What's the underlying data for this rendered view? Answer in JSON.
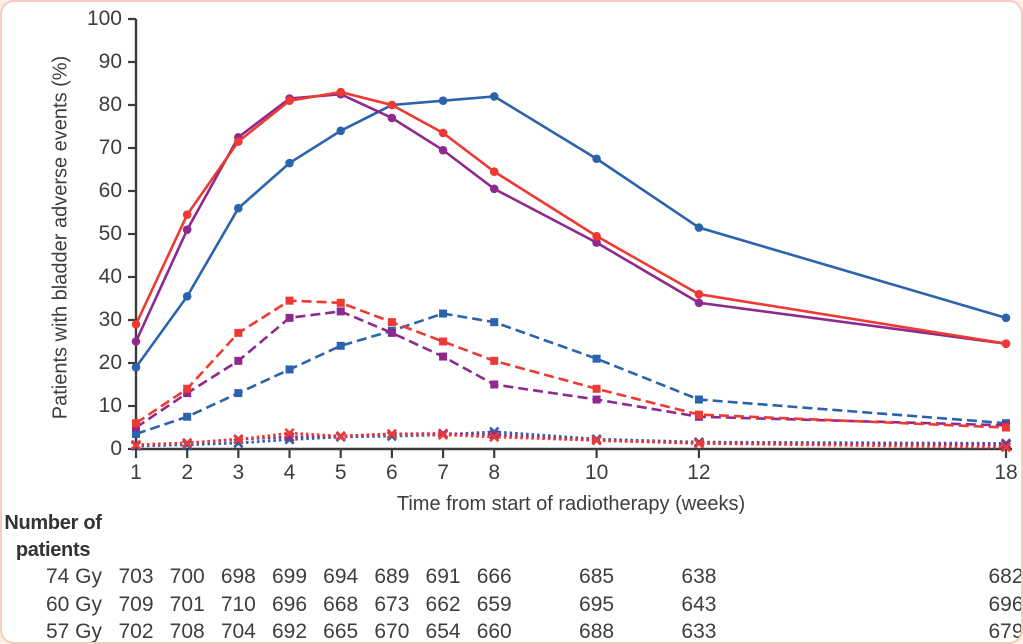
{
  "figure": {
    "background_color": "#ffffff",
    "border_color": "#f5cdb9",
    "axis_color": "#3c3c3c",
    "text_color": "#3e3e3e"
  },
  "chart_data": {
    "type": "line",
    "title": "",
    "xlabel": "Time from start of radiotherapy (weeks)",
    "ylabel": "Patients with bladder adverse events (%)",
    "x_weeks": [
      1,
      2,
      3,
      4,
      5,
      6,
      7,
      8,
      10,
      12,
      18
    ],
    "x_tick_labels": [
      "1",
      "2",
      "3",
      "4",
      "5",
      "6",
      "7",
      "8",
      "10",
      "12",
      "18"
    ],
    "y_tick_labels": [
      "0",
      "10",
      "20",
      "30",
      "40",
      "50",
      "60",
      "70",
      "80",
      "90",
      "100"
    ],
    "ylim": [
      0,
      100
    ],
    "y_tick_step": 10,
    "grid": false,
    "legend": null,
    "series": [
      {
        "id": "solid-blue",
        "color": "#2b63ad",
        "line_style": "solid",
        "marker": "circle",
        "values": [
          19,
          35.5,
          56,
          66.5,
          74,
          80,
          81,
          82,
          67.5,
          51.5,
          30.5
        ]
      },
      {
        "id": "solid-purple",
        "color": "#8e2a8e",
        "line_style": "solid",
        "marker": "circle",
        "values": [
          25,
          51,
          72.5,
          81.5,
          82.5,
          77,
          69.5,
          60.5,
          48,
          34,
          24.5
        ]
      },
      {
        "id": "solid-red",
        "color": "#ee3a33",
        "line_style": "solid",
        "marker": "circle",
        "values": [
          29,
          54.5,
          71.5,
          81,
          83,
          80,
          73.5,
          64.5,
          49.5,
          36,
          24.5
        ]
      },
      {
        "id": "dashed-blue",
        "color": "#2b63ad",
        "line_style": "dashed",
        "marker": "square",
        "values": [
          3.5,
          7.5,
          13,
          18.5,
          24,
          27.5,
          31.5,
          29.5,
          21,
          11.5,
          6
        ]
      },
      {
        "id": "dashed-purple",
        "color": "#8e2a8e",
        "line_style": "dashed",
        "marker": "square",
        "values": [
          5,
          13,
          20.5,
          30.5,
          32,
          27,
          21.5,
          15,
          11.5,
          7.5,
          5.5
        ]
      },
      {
        "id": "dashed-red",
        "color": "#ee3a33",
        "line_style": "dashed",
        "marker": "square",
        "values": [
          6,
          14,
          27,
          34.5,
          34,
          29.5,
          25,
          20.5,
          14,
          8,
          5
        ]
      },
      {
        "id": "dotted-blue",
        "color": "#2b63ad",
        "line_style": "dotted",
        "marker": "cross",
        "values": [
          0.7,
          1,
          1.4,
          2.2,
          2.8,
          3,
          3.3,
          4,
          2.3,
          1.6,
          1.3
        ]
      },
      {
        "id": "dotted-purple",
        "color": "#8e2a8e",
        "line_style": "dotted",
        "marker": "cross",
        "values": [
          0.9,
          1.4,
          2.3,
          2.8,
          3,
          3.5,
          3.6,
          3.3,
          2,
          1.4,
          1
        ]
      },
      {
        "id": "dotted-red",
        "color": "#ee3a33",
        "line_style": "dotted",
        "marker": "cross",
        "values": [
          1,
          1.4,
          2.2,
          3.7,
          3,
          3.5,
          3.3,
          2.8,
          2,
          1.3,
          0.4
        ]
      }
    ]
  },
  "patients_table": {
    "header_line1": "Number of",
    "header_line2": "patients",
    "columns_weeks": [
      1,
      2,
      3,
      4,
      5,
      6,
      7,
      8,
      10,
      12,
      18
    ],
    "rows": [
      {
        "label": "74 Gy",
        "values": [
          703,
          700,
          698,
          699,
          694,
          689,
          691,
          666,
          685,
          638,
          682
        ]
      },
      {
        "label": "60 Gy",
        "values": [
          709,
          701,
          710,
          696,
          668,
          673,
          662,
          659,
          695,
          643,
          696
        ]
      },
      {
        "label": "57 Gy",
        "values": [
          702,
          708,
          704,
          692,
          665,
          670,
          654,
          660,
          688,
          633,
          679
        ]
      }
    ]
  }
}
